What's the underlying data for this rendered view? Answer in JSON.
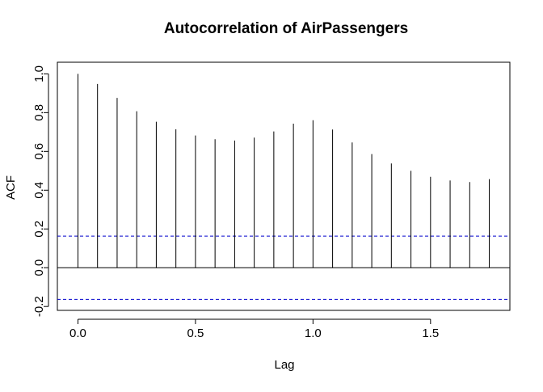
{
  "chart_data": {
    "type": "bar",
    "title": "Autocorrelation of AirPassengers",
    "xlabel": "Lag",
    "ylabel": "ACF",
    "x": [
      0.0,
      0.0833,
      0.1667,
      0.25,
      0.3333,
      0.4167,
      0.5,
      0.5833,
      0.6667,
      0.75,
      0.8333,
      0.9167,
      1.0,
      1.0833,
      1.1667,
      1.25,
      1.3333,
      1.4167,
      1.5,
      1.5833,
      1.6667,
      1.75
    ],
    "values": [
      1.0,
      0.948,
      0.876,
      0.807,
      0.753,
      0.714,
      0.682,
      0.663,
      0.656,
      0.671,
      0.703,
      0.743,
      0.761,
      0.713,
      0.646,
      0.586,
      0.538,
      0.5,
      0.469,
      0.45,
      0.442,
      0.457
    ],
    "xlim": [
      -0.0875,
      1.8375
    ],
    "ylim": [
      -0.22,
      1.06
    ],
    "x_ticks": [
      "0.0",
      "0.5",
      "1.0",
      "1.5"
    ],
    "y_ticks": [
      "-0.2",
      "0.0",
      "0.2",
      "0.4",
      "0.6",
      "0.8",
      "1.0"
    ],
    "confidence_bound": 0.1633,
    "zero_line": 0,
    "colors": {
      "spike": "#000000",
      "confidence": "#0000cc",
      "axis": "#000000"
    },
    "grid": false,
    "legend": "none"
  }
}
